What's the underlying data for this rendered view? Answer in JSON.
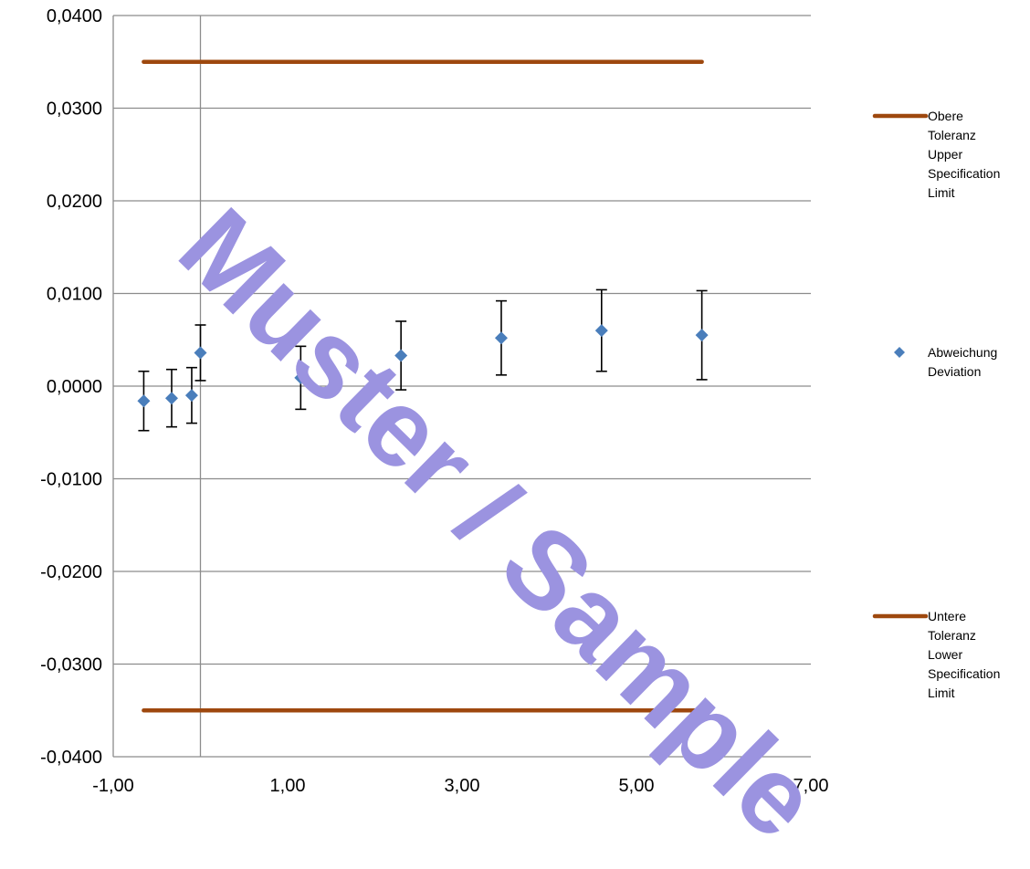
{
  "chart_data": {
    "type": "scatter",
    "xlim": [
      -1.0,
      7.0
    ],
    "ylim": [
      -0.04,
      0.04
    ],
    "x_ticks": [
      {
        "value": -1.0,
        "label": "-1,00"
      },
      {
        "value": 1.0,
        "label": "1,00"
      },
      {
        "value": 3.0,
        "label": "3,00"
      },
      {
        "value": 5.0,
        "label": "5,00"
      },
      {
        "value": 7.0,
        "label": "7,00"
      }
    ],
    "y_ticks": [
      {
        "value": 0.04,
        "label": "0,0400"
      },
      {
        "value": 0.03,
        "label": "0,0300"
      },
      {
        "value": 0.02,
        "label": "0,0200"
      },
      {
        "value": 0.01,
        "label": "0,0100"
      },
      {
        "value": 0.0,
        "label": "0,0000"
      },
      {
        "value": -0.01,
        "label": "-0,0100"
      },
      {
        "value": -0.02,
        "label": "-0,0200"
      },
      {
        "value": -0.03,
        "label": "-0,0300"
      },
      {
        "value": -0.04,
        "label": "-0,0400"
      }
    ],
    "grid": "horizontal",
    "legend_position": "right",
    "upper_limit": {
      "name": [
        "Obere",
        "Toleranz",
        "Upper",
        "Specification",
        "Limit"
      ],
      "color": "#9e480e",
      "y": 0.035,
      "x_range": [
        -0.65,
        5.75
      ]
    },
    "lower_limit": {
      "name": [
        "Untere",
        "Toleranz",
        "Lower",
        "Specification",
        "Limit"
      ],
      "color": "#9e480e",
      "y": -0.035,
      "x_range": [
        -0.65,
        5.75
      ]
    },
    "deviation": {
      "name": [
        "Abweichung",
        "Deviation"
      ],
      "color": "#4a7ebb",
      "points": [
        {
          "x": -0.65,
          "y": -0.0016,
          "err": 0.0032
        },
        {
          "x": -0.33,
          "y": -0.0013,
          "err": 0.0031
        },
        {
          "x": -0.1,
          "y": -0.001,
          "err": 0.003
        },
        {
          "x": 0.0,
          "y": 0.0036,
          "err": 0.003
        },
        {
          "x": 1.15,
          "y": 0.0009,
          "err": 0.0034
        },
        {
          "x": 2.3,
          "y": 0.0033,
          "err": 0.0037
        },
        {
          "x": 3.45,
          "y": 0.0052,
          "err": 0.004
        },
        {
          "x": 4.6,
          "y": 0.006,
          "err": 0.0044
        },
        {
          "x": 5.75,
          "y": 0.0055,
          "err": 0.0048
        }
      ]
    }
  },
  "watermark": {
    "text": "Muster / Sample",
    "color": "#9b93e0"
  }
}
